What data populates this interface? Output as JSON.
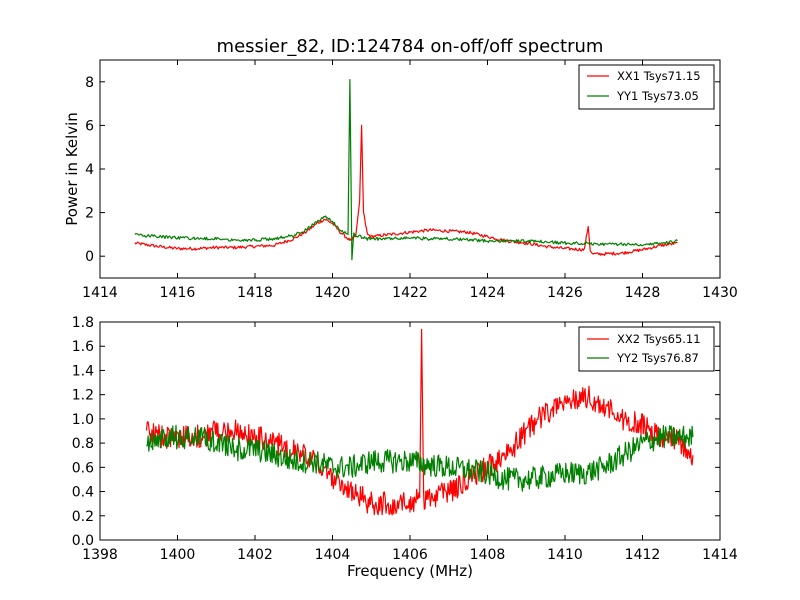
{
  "chart_data": [
    {
      "type": "line",
      "title": "messier_82, ID:124784 on-off/off spectrum",
      "xlabel": "",
      "ylabel": "Power in Kelvin",
      "xlim": [
        1414,
        1430
      ],
      "ylim": [
        -1,
        9
      ],
      "xticks": [
        1414,
        1416,
        1418,
        1420,
        1422,
        1424,
        1426,
        1428,
        1430
      ],
      "yticks": [
        0,
        2,
        4,
        6,
        8
      ],
      "legend": "top-right",
      "grid": false,
      "series": [
        {
          "name": "XX1 Tsys71.15",
          "color": "#ff0000",
          "x": [
            1414.9,
            1415.5,
            1416.0,
            1416.5,
            1417.0,
            1417.5,
            1418.0,
            1418.5,
            1419.0,
            1419.3,
            1419.6,
            1419.8,
            1420.0,
            1420.2,
            1420.4,
            1420.5,
            1420.55,
            1420.6,
            1420.7,
            1420.75,
            1420.8,
            1420.9,
            1421.0,
            1421.5,
            1422.0,
            1422.5,
            1423.0,
            1423.5,
            1424.0,
            1424.5,
            1425.0,
            1425.5,
            1426.0,
            1426.5,
            1426.6,
            1426.65,
            1426.7,
            1427.0,
            1427.5,
            1428.0,
            1428.5,
            1428.9
          ],
          "y": [
            0.6,
            0.45,
            0.35,
            0.35,
            0.4,
            0.4,
            0.45,
            0.5,
            0.8,
            1.1,
            1.5,
            1.7,
            1.5,
            1.1,
            0.8,
            0.7,
            0.9,
            0.9,
            2.5,
            6.0,
            2.0,
            1.0,
            0.9,
            1.0,
            1.1,
            1.2,
            1.15,
            1.1,
            0.9,
            0.7,
            0.6,
            0.45,
            0.35,
            0.3,
            1.4,
            0.3,
            0.1,
            0.1,
            0.15,
            0.3,
            0.5,
            0.6
          ]
        },
        {
          "name": "YY1 Tsys73.05",
          "color": "#008000",
          "x": [
            1414.9,
            1415.5,
            1416.0,
            1416.5,
            1417.0,
            1417.5,
            1418.0,
            1418.5,
            1419.0,
            1419.3,
            1419.6,
            1419.8,
            1420.0,
            1420.2,
            1420.4,
            1420.45,
            1420.5,
            1420.55,
            1420.6,
            1420.7,
            1420.8,
            1420.9,
            1421.0,
            1421.5,
            1422.0,
            1422.5,
            1423.0,
            1423.5,
            1424.0,
            1424.5,
            1425.0,
            1425.5,
            1426.0,
            1426.5,
            1427.0,
            1427.5,
            1428.0,
            1428.5,
            1428.9
          ],
          "y": [
            1.0,
            0.9,
            0.85,
            0.8,
            0.8,
            0.75,
            0.75,
            0.8,
            0.95,
            1.2,
            1.6,
            1.8,
            1.6,
            1.2,
            1.0,
            8.1,
            -0.2,
            1.0,
            0.9,
            0.9,
            0.85,
            0.8,
            0.8,
            0.8,
            0.85,
            0.8,
            0.8,
            0.75,
            0.7,
            0.7,
            0.7,
            0.65,
            0.6,
            0.6,
            0.55,
            0.55,
            0.55,
            0.6,
            0.7
          ]
        }
      ]
    },
    {
      "type": "line",
      "title": "",
      "xlabel": "Frequency (MHz)",
      "ylabel": "",
      "xlim": [
        1398,
        1414
      ],
      "ylim": [
        0.0,
        1.8
      ],
      "xticks": [
        1398,
        1400,
        1402,
        1404,
        1406,
        1408,
        1410,
        1412,
        1414
      ],
      "yticks": [
        0.0,
        0.2,
        0.4,
        0.6,
        0.8,
        1.0,
        1.2,
        1.4,
        1.6,
        1.8
      ],
      "legend": "top-right",
      "grid": false,
      "series": [
        {
          "name": "XX2 Tsys65.11",
          "color": "#ff0000",
          "x": [
            1399.2,
            1399.6,
            1400.0,
            1400.5,
            1401.0,
            1401.5,
            1402.0,
            1402.5,
            1403.0,
            1403.5,
            1404.0,
            1404.5,
            1405.0,
            1405.5,
            1406.0,
            1406.25,
            1406.3,
            1406.35,
            1406.6,
            1407.0,
            1407.5,
            1408.0,
            1408.5,
            1409.0,
            1409.5,
            1410.0,
            1410.5,
            1411.0,
            1411.5,
            1412.0,
            1412.5,
            1413.0,
            1413.3
          ],
          "y": [
            0.9,
            0.85,
            0.85,
            0.85,
            0.9,
            0.9,
            0.85,
            0.8,
            0.75,
            0.65,
            0.5,
            0.4,
            0.3,
            0.3,
            0.3,
            0.35,
            1.74,
            0.35,
            0.35,
            0.4,
            0.5,
            0.6,
            0.7,
            0.9,
            1.05,
            1.15,
            1.2,
            1.1,
            1.0,
            0.95,
            0.85,
            0.8,
            0.7
          ]
        },
        {
          "name": "YY2 Tsys76.87",
          "color": "#008000",
          "x": [
            1399.2,
            1399.6,
            1400.0,
            1400.5,
            1401.0,
            1401.5,
            1402.0,
            1402.5,
            1403.0,
            1403.5,
            1404.0,
            1404.5,
            1405.0,
            1405.5,
            1406.0,
            1406.5,
            1407.0,
            1407.5,
            1408.0,
            1408.5,
            1409.0,
            1409.5,
            1410.0,
            1410.5,
            1411.0,
            1411.5,
            1412.0,
            1412.5,
            1413.0,
            1413.3
          ],
          "y": [
            0.8,
            0.85,
            0.85,
            0.85,
            0.8,
            0.75,
            0.75,
            0.7,
            0.65,
            0.65,
            0.6,
            0.6,
            0.65,
            0.65,
            0.65,
            0.62,
            0.6,
            0.58,
            0.55,
            0.5,
            0.5,
            0.52,
            0.55,
            0.55,
            0.6,
            0.7,
            0.8,
            0.85,
            0.85,
            0.85
          ]
        }
      ]
    }
  ]
}
